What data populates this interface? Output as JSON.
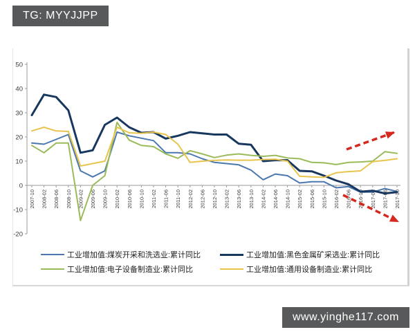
{
  "header": {
    "badge": "TG: MYYJJPP"
  },
  "footer": {
    "url": "www.yinghe117.com"
  },
  "colors": {
    "badge_bg": "#58595b",
    "axis": "#9a9a9a",
    "tick_text": "#3c3c3c",
    "arrow_red": "#d6281e"
  },
  "chart_data": {
    "type": "line",
    "title": "",
    "xlabel": "",
    "ylabel": "",
    "ylim": [
      -20,
      50
    ],
    "yticks": [
      50,
      40,
      30,
      20,
      10,
      0,
      -10,
      -20
    ],
    "grid": false,
    "legend_position": "bottom",
    "categories": [
      "2007-10",
      "2008-02",
      "2008-06",
      "2008-10",
      "2009-02",
      "2009-06",
      "2009-10",
      "2010-02",
      "2010-06",
      "2010-10",
      "2011-02",
      "2011-06",
      "2011-10",
      "2012-02",
      "2012-06",
      "2012-10",
      "2013-02",
      "2013-06",
      "2013-10",
      "2014-02",
      "2014-06",
      "2014-10",
      "2015-02",
      "2015-06",
      "2015-10",
      "2016-02",
      "2016-06",
      "2016-10",
      "2017-02",
      "2017-06",
      "2017-10"
    ],
    "series": [
      {
        "name": "工业增加值:煤炭开采和洗选业:累计同比",
        "color": "#4a77ad",
        "line_width": 2,
        "values": [
          17.5,
          17.0,
          19.0,
          21.0,
          6.0,
          3.5,
          6.0,
          22.0,
          20.5,
          19.5,
          18.5,
          13.5,
          13.5,
          13.0,
          11.0,
          9.5,
          9.0,
          8.5,
          6.3,
          2.3,
          4.7,
          4.0,
          1.0,
          1.5,
          1.5,
          -1.0,
          -0.5,
          -2.8,
          -2.8,
          -1.3,
          -2.5
        ]
      },
      {
        "name": "工业增加值:黑色金属矿采选业:累计同比",
        "color": "#17375e",
        "line_width": 3,
        "values": [
          29.0,
          37.5,
          36.5,
          31.0,
          13.5,
          14.5,
          25.0,
          28.0,
          24.0,
          21.7,
          22.0,
          19.3,
          20.5,
          22.0,
          21.5,
          21.0,
          21.0,
          17.2,
          16.8,
          10.0,
          10.4,
          10.4,
          6.0,
          5.8,
          4.0,
          2.0,
          0.5,
          -2.6,
          -2.2,
          -3.3,
          -2.8
        ]
      },
      {
        "name": "工业增加值:电子设备制造业:累计同比",
        "color": "#9bbb59",
        "line_width": 2,
        "values": [
          16.5,
          13.5,
          17.5,
          17.5,
          -14.5,
          0.0,
          4.0,
          26.0,
          18.7,
          16.5,
          16.0,
          13.0,
          11.2,
          14.3,
          13.0,
          11.5,
          12.5,
          13.0,
          12.4,
          12.0,
          12.4,
          11.3,
          11.0,
          9.5,
          9.3,
          8.6,
          9.5,
          9.7,
          10.0,
          13.9,
          13.2
        ]
      },
      {
        "name": "工业增加值:通用设备制造业:累计同比",
        "color": "#e8c44d",
        "line_width": 2,
        "values": [
          22.5,
          24.0,
          22.5,
          22.3,
          8.0,
          9.0,
          10.0,
          24.0,
          21.7,
          21.5,
          22.0,
          21.0,
          17.0,
          9.5,
          10.0,
          10.3,
          10.5,
          10.4,
          10.4,
          10.7,
          10.8,
          10.0,
          3.8,
          3.5,
          3.3,
          5.2,
          5.7,
          6.0,
          9.8,
          10.3,
          11.0
        ]
      }
    ],
    "annotations": [
      {
        "type": "arrow",
        "direction": "up-right",
        "color": "#d6281e",
        "from": [
          482,
          146
        ],
        "to": [
          552,
          121
        ]
      },
      {
        "type": "arrow",
        "direction": "down-right",
        "color": "#d6281e",
        "from": [
          477,
          212
        ],
        "to": [
          558,
          251
        ]
      }
    ]
  }
}
